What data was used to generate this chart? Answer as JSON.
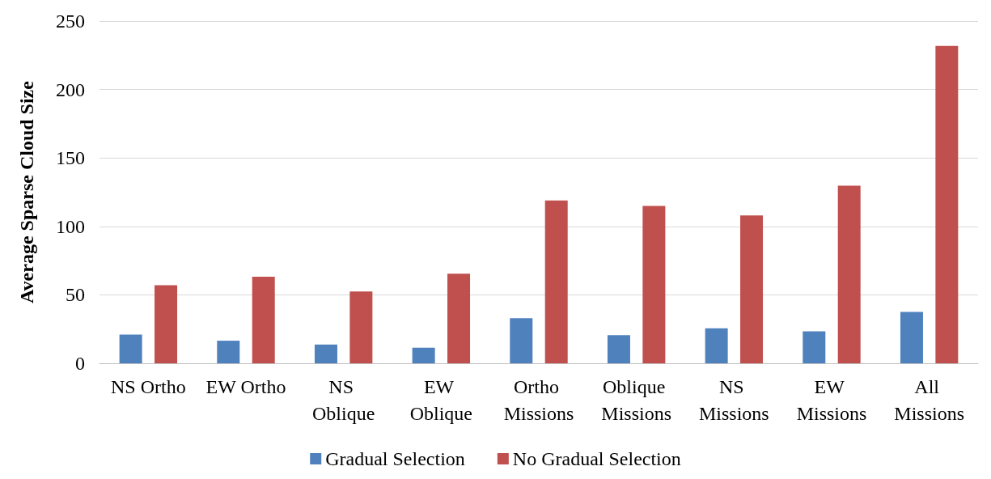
{
  "chart_data": {
    "type": "bar",
    "ylabel": "Average Sparse Cloud Size",
    "categories": [
      "NS Ortho",
      "EW Ortho",
      "NS Oblique",
      "EW Oblique",
      "Ortho Missions",
      "Oblique Missions",
      "NS Missions",
      "EW Missions",
      "All Missions"
    ],
    "series": [
      {
        "name": "Gradual Selection",
        "color": "#4f81bd",
        "values": [
          21,
          16.5,
          13.7,
          11.4,
          33,
          20.5,
          25.6,
          23.3,
          37.6
        ]
      },
      {
        "name": "No Gradual Selection",
        "color": "#c0504d",
        "values": [
          57,
          63.2,
          52.4,
          65.5,
          119,
          115,
          108,
          129.8,
          231.8
        ]
      }
    ],
    "ylim": [
      0,
      250
    ],
    "yticks": [
      0,
      50,
      100,
      150,
      200,
      250
    ],
    "grid": "y",
    "legend": "bottom"
  }
}
